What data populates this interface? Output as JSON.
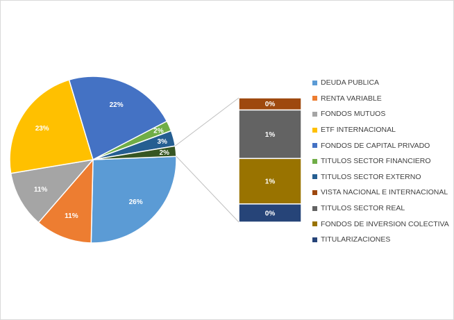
{
  "chart_data": {
    "type": "pie",
    "title": "",
    "legend_position": "right",
    "slices": [
      {
        "label": "DEUDA PUBLICA",
        "value": 26,
        "display": "26%",
        "color": "#5B9BD5"
      },
      {
        "label": "RENTA VARIABLE",
        "value": 11,
        "display": "11%",
        "color": "#ED7D31"
      },
      {
        "label": "FONDOS MUTUOS",
        "value": 11,
        "display": "11%",
        "color": "#A5A5A5"
      },
      {
        "label": "ETF INTERNACIONAL",
        "value": 23,
        "display": "23%",
        "color": "#FFC000"
      },
      {
        "label": "FONDOS DE CAPITAL PRIVADO",
        "value": 22,
        "display": "22%",
        "color": "#4472C4"
      },
      {
        "label": "TITULOS SECTOR FINANCIERO",
        "value": 2,
        "display": "2%",
        "color": "#70AD47"
      },
      {
        "label": "TITULOS SECTOR EXTERNO",
        "value": 3,
        "display": "3%",
        "color": "#255E91"
      },
      {
        "label": "VISTA NACIONAL E INTERNACIONAL",
        "value": 2,
        "display": "2%",
        "color": "#375623"
      }
    ],
    "stacked_bar": [
      {
        "label": "VISTA NACIONAL E INTERNACIONAL",
        "value": 0.2,
        "display": "0%",
        "color": "#9E480E"
      },
      {
        "label": "TITULOS SECTOR REAL",
        "value": 0.8,
        "display": "1%",
        "color": "#636363"
      },
      {
        "label": "FONDOS DE INVERSION COLECTIVA",
        "value": 0.75,
        "display": "1%",
        "color": "#997300"
      },
      {
        "label": "TITULARIZACIONES",
        "value": 0.3,
        "display": "0%",
        "color": "#264478"
      }
    ],
    "legend": [
      {
        "label": "DEUDA PUBLICA",
        "color": "#5B9BD5"
      },
      {
        "label": "RENTA VARIABLE",
        "color": "#ED7D31"
      },
      {
        "label": "FONDOS MUTUOS",
        "color": "#A5A5A5"
      },
      {
        "label": "ETF INTERNACIONAL",
        "color": "#FFC000"
      },
      {
        "label": "FONDOS DE CAPITAL PRIVADO",
        "color": "#4472C4"
      },
      {
        "label": "TITULOS SECTOR FINANCIERO",
        "color": "#70AD47"
      },
      {
        "label": "TITULOS SECTOR EXTERNO",
        "color": "#255E91"
      },
      {
        "label": "VISTA NACIONAL E INTERNACIONAL",
        "color": "#9E480E"
      },
      {
        "label": "TITULOS SECTOR REAL",
        "color": "#636363"
      },
      {
        "label": "FONDOS DE INVERSION COLECTIVA",
        "color": "#997300"
      },
      {
        "label": "TITULARIZACIONES",
        "color": "#264478"
      }
    ]
  }
}
